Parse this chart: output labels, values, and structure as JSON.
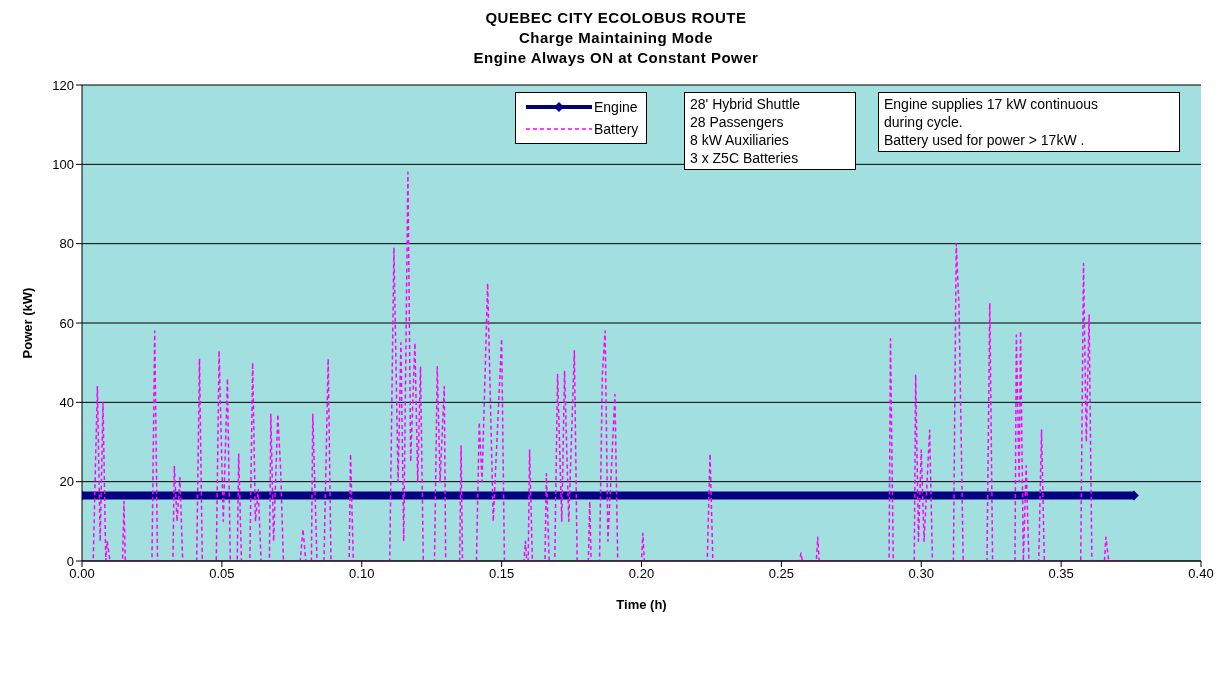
{
  "chart_data": {
    "type": "line",
    "title": "QUEBEC CITY ECOLOBUS ROUTE",
    "subtitle": "Charge Maintaining Mode\nEngine Always ON at Constant Power",
    "xlabel": "Time (h)",
    "ylabel": "Power (kW)",
    "xlim": [
      0,
      0.4
    ],
    "xticks": [
      {
        "value": 0,
        "label": "0.00"
      },
      {
        "value": 0.05,
        "label": "0.05"
      },
      {
        "value": 0.1,
        "label": "0.10"
      },
      {
        "value": 0.15,
        "label": "0.15"
      },
      {
        "value": 0.2,
        "label": "0.20"
      },
      {
        "value": 0.25,
        "label": "0.25"
      },
      {
        "value": 0.3,
        "label": "0.30"
      },
      {
        "value": 0.35,
        "label": "0.35"
      },
      {
        "value": 0.4,
        "label": "0.40"
      }
    ],
    "ylim": [
      0,
      120
    ],
    "yticks": [
      0,
      20,
      40,
      60,
      80,
      100,
      120
    ],
    "grid": "y",
    "legend": "top",
    "annotations": [
      "28' Hybrid Shuttle\n28 Passengers\n8 kW  Auxiliaries\n3 x Z5C Batteries",
      "Engine supplies 17 kW  continuous\nduring cycle.\nBattery used for power > 17kW ."
    ],
    "series": [
      {
        "name": "Engine",
        "color": "#000080",
        "marker": "diamond",
        "line_style": "solid",
        "x": [
          0,
          0.376
        ],
        "values": [
          16.5,
          16.5
        ]
      },
      {
        "name": "Battery",
        "color": "#ff00ff",
        "marker": "none",
        "line_style": "dashed",
        "x": [
          0,
          0.004,
          0.0055,
          0.0065,
          0.0075,
          0.0085,
          0.009,
          0.01,
          0.0145,
          0.015,
          0.0155,
          0.025,
          0.026,
          0.027,
          0.0325,
          0.033,
          0.034,
          0.035,
          0.036,
          0.041,
          0.042,
          0.043,
          0.048,
          0.049,
          0.0505,
          0.052,
          0.053,
          0.0555,
          0.056,
          0.057,
          0.06,
          0.061,
          0.062,
          0.063,
          0.064,
          0.067,
          0.0675,
          0.0685,
          0.07,
          0.071,
          0.072,
          0.078,
          0.079,
          0.08,
          0.082,
          0.0825,
          0.084,
          0.0865,
          0.088,
          0.089,
          0.0955,
          0.096,
          0.097,
          0.11,
          0.1115,
          0.113,
          0.114,
          0.115,
          0.1165,
          0.1175,
          0.119,
          0.12,
          0.121,
          0.122,
          0.126,
          0.127,
          0.128,
          0.1295,
          0.13,
          0.135,
          0.1355,
          0.136,
          0.141,
          0.142,
          0.143,
          0.145,
          0.147,
          0.15,
          0.151,
          0.158,
          0.1585,
          0.159,
          0.1595,
          0.16,
          0.161,
          0.1655,
          0.166,
          0.167,
          0.169,
          0.17,
          0.1715,
          0.1725,
          0.174,
          0.176,
          0.177,
          0.181,
          0.1815,
          0.182,
          0.185,
          0.186,
          0.187,
          0.188,
          0.1905,
          0.1915,
          0.2,
          0.2005,
          0.201,
          0.2235,
          0.2245,
          0.2255,
          0.2565,
          0.257,
          0.2575,
          0.2625,
          0.263,
          0.2635,
          0.2885,
          0.289,
          0.29,
          0.2975,
          0.298,
          0.299,
          0.3,
          0.301,
          0.303,
          0.304,
          0.3115,
          0.3125,
          0.3135,
          0.315,
          0.3235,
          0.3245,
          0.3255,
          0.3335,
          0.334,
          0.335,
          0.3355,
          0.3365,
          0.3375,
          0.3385,
          0.342,
          0.343,
          0.344,
          0.357,
          0.358,
          0.359,
          0.36,
          0.361,
          0.3655,
          0.366,
          0.367,
          0.376
        ],
        "values": [
          0,
          0,
          44,
          5,
          40,
          0,
          5,
          0,
          0,
          15,
          0,
          0,
          58,
          0,
          0,
          24,
          10,
          21,
          0,
          0,
          51,
          0,
          0,
          53,
          10,
          46,
          0,
          0,
          27,
          0,
          0,
          50,
          10,
          18,
          0,
          0,
          37,
          5,
          37,
          23,
          0,
          0,
          8,
          0,
          0,
          37,
          0,
          0,
          51,
          0,
          0,
          27,
          0,
          0,
          79,
          20,
          55,
          5,
          98,
          25,
          55,
          20,
          49,
          0,
          0,
          49,
          20,
          44,
          0,
          0,
          29,
          0,
          0,
          35,
          20,
          70,
          10,
          56,
          0,
          0,
          5,
          0,
          0,
          28,
          0,
          0,
          22,
          0,
          0,
          47,
          10,
          48,
          10,
          53,
          0,
          0,
          15,
          0,
          0,
          47,
          58,
          5,
          42,
          0,
          0,
          7,
          0,
          0,
          27,
          0,
          0,
          2,
          0,
          0,
          6,
          0,
          0,
          56,
          0,
          0,
          47,
          5,
          28,
          5,
          33,
          0,
          0,
          80,
          64,
          0,
          0,
          65,
          0,
          0,
          57,
          20,
          58,
          0,
          24,
          0,
          0,
          33,
          0,
          0,
          75,
          30,
          62,
          0,
          0,
          6,
          0,
          0
        ]
      }
    ]
  }
}
